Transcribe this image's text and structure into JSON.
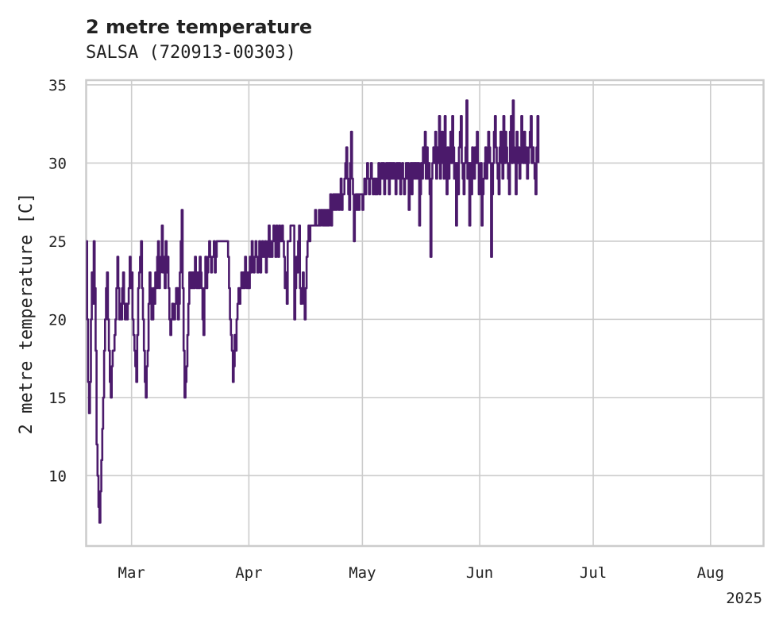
{
  "chart_data": {
    "type": "line",
    "title": "2 metre temperature",
    "subtitle": "SALSA (720913-00303)",
    "ylabel": "2 metre temperature [C]",
    "xlabel": "",
    "x_year_label": "2025",
    "xlim": [
      "2025-02-17",
      "2025-08-15"
    ],
    "ylim": [
      5.5,
      35.3
    ],
    "yticks": [
      10,
      15,
      20,
      25,
      30,
      35
    ],
    "xticks": [
      {
        "date": "2025-03-01",
        "label": "Mar"
      },
      {
        "date": "2025-04-01",
        "label": "Apr"
      },
      {
        "date": "2025-05-01",
        "label": "May"
      },
      {
        "date": "2025-06-01",
        "label": "Jun"
      },
      {
        "date": "2025-07-01",
        "label": "Jul"
      },
      {
        "date": "2025-08-01",
        "label": "Aug"
      }
    ],
    "grid": true,
    "line_color": "#4b1a6b",
    "series": [
      {
        "step": "6h",
        "values": [
          25,
          20,
          16,
          14,
          16,
          20,
          23,
          21,
          25,
          22,
          18,
          12,
          10,
          8,
          7,
          9,
          11,
          13,
          15,
          18,
          20,
          22,
          23,
          20,
          18,
          16,
          15,
          17,
          18,
          18,
          19,
          20,
          22,
          24,
          22,
          20,
          21,
          20,
          22,
          23,
          21,
          20,
          21,
          20,
          21,
          22,
          24,
          22,
          23,
          20,
          19,
          18,
          17,
          16,
          19,
          22,
          23,
          24,
          25,
          22,
          20,
          18,
          16,
          15,
          17,
          18,
          21,
          23,
          22,
          20,
          20,
          22,
          21,
          23,
          22,
          24,
          25,
          22,
          23,
          24,
          26,
          23,
          24,
          22,
          25,
          23,
          24,
          22,
          20,
          19,
          20,
          21,
          20,
          20,
          21,
          22,
          22,
          20,
          21,
          23,
          25,
          27,
          22,
          18,
          15,
          16,
          17,
          19,
          21,
          23,
          22,
          23,
          22,
          23,
          22,
          24,
          23,
          22,
          23,
          22,
          24,
          23,
          22,
          20,
          19,
          22,
          24,
          22,
          23,
          24,
          25,
          24,
          23,
          24,
          24,
          25,
          23,
          24,
          25,
          25,
          25,
          25,
          25,
          25,
          25,
          25,
          25,
          25,
          25,
          25,
          24,
          22,
          20,
          19,
          18,
          16,
          17,
          19,
          18,
          20,
          21,
          22,
          21,
          22,
          23,
          22,
          23,
          22,
          24,
          23,
          22,
          23,
          22,
          24,
          23,
          25,
          24,
          23,
          24,
          25,
          24,
          23,
          24,
          25,
          23,
          24,
          25,
          24,
          24,
          25,
          23,
          24,
          25,
          26,
          24,
          25,
          24,
          25,
          26,
          25,
          24,
          26,
          25,
          24,
          26,
          25,
          25,
          26,
          25,
          24,
          22,
          23,
          21,
          25,
          25,
          25,
          26,
          26,
          26,
          26,
          20,
          22,
          24,
          23,
          25,
          26,
          22,
          21,
          22,
          23,
          21,
          20,
          22,
          24,
          25,
          26,
          25,
          26,
          26,
          26,
          26,
          26,
          27,
          26,
          26,
          26,
          27,
          26,
          27,
          27,
          26,
          27,
          26,
          27,
          26,
          27,
          26,
          27,
          28,
          26,
          27,
          28,
          27,
          28,
          27,
          28,
          28,
          27,
          28,
          29,
          27,
          28,
          28,
          29,
          30,
          31,
          29,
          28,
          27,
          30,
          32,
          29,
          28,
          25,
          27,
          28,
          27,
          28,
          27,
          28,
          28,
          28,
          27,
          28,
          29,
          28,
          29,
          30,
          29,
          28,
          29,
          30,
          29,
          28,
          29,
          28,
          29,
          28,
          29,
          30,
          28,
          29,
          30,
          29,
          30,
          28,
          29,
          30,
          29,
          30,
          28,
          30,
          29,
          30,
          29,
          30,
          29,
          28,
          30,
          30,
          29,
          30,
          28,
          29,
          30,
          29,
          28,
          29,
          30,
          29,
          30,
          27,
          29,
          30,
          28,
          30,
          29,
          30,
          29,
          30,
          29,
          30,
          26,
          28,
          30,
          29,
          31,
          30,
          32,
          29,
          31,
          29,
          30,
          28,
          24,
          29,
          30,
          31,
          30,
          32,
          29,
          31,
          30,
          33,
          29,
          30,
          32,
          30,
          29,
          33,
          30,
          28,
          31,
          29,
          30,
          32,
          30,
          33,
          31,
          29,
          30,
          26,
          30,
          28,
          31,
          32,
          33,
          30,
          29,
          28,
          30,
          31,
          34,
          29,
          30,
          26,
          30,
          28,
          31,
          30,
          29,
          31,
          30,
          32,
          30,
          28,
          29,
          30,
          26,
          28,
          29,
          30,
          31,
          29,
          30,
          32,
          31,
          30,
          24,
          28,
          30,
          32,
          33,
          31,
          30,
          29,
          28,
          31,
          32,
          30,
          29,
          33,
          30,
          32,
          31,
          30,
          29,
          28,
          32,
          33,
          30,
          34,
          31,
          30,
          28,
          32,
          30,
          31,
          29,
          30,
          33,
          31,
          30,
          32,
          30,
          31,
          29,
          30,
          31,
          32,
          33,
          30,
          31,
          30,
          29,
          28,
          31,
          33,
          30
        ]
      }
    ]
  }
}
